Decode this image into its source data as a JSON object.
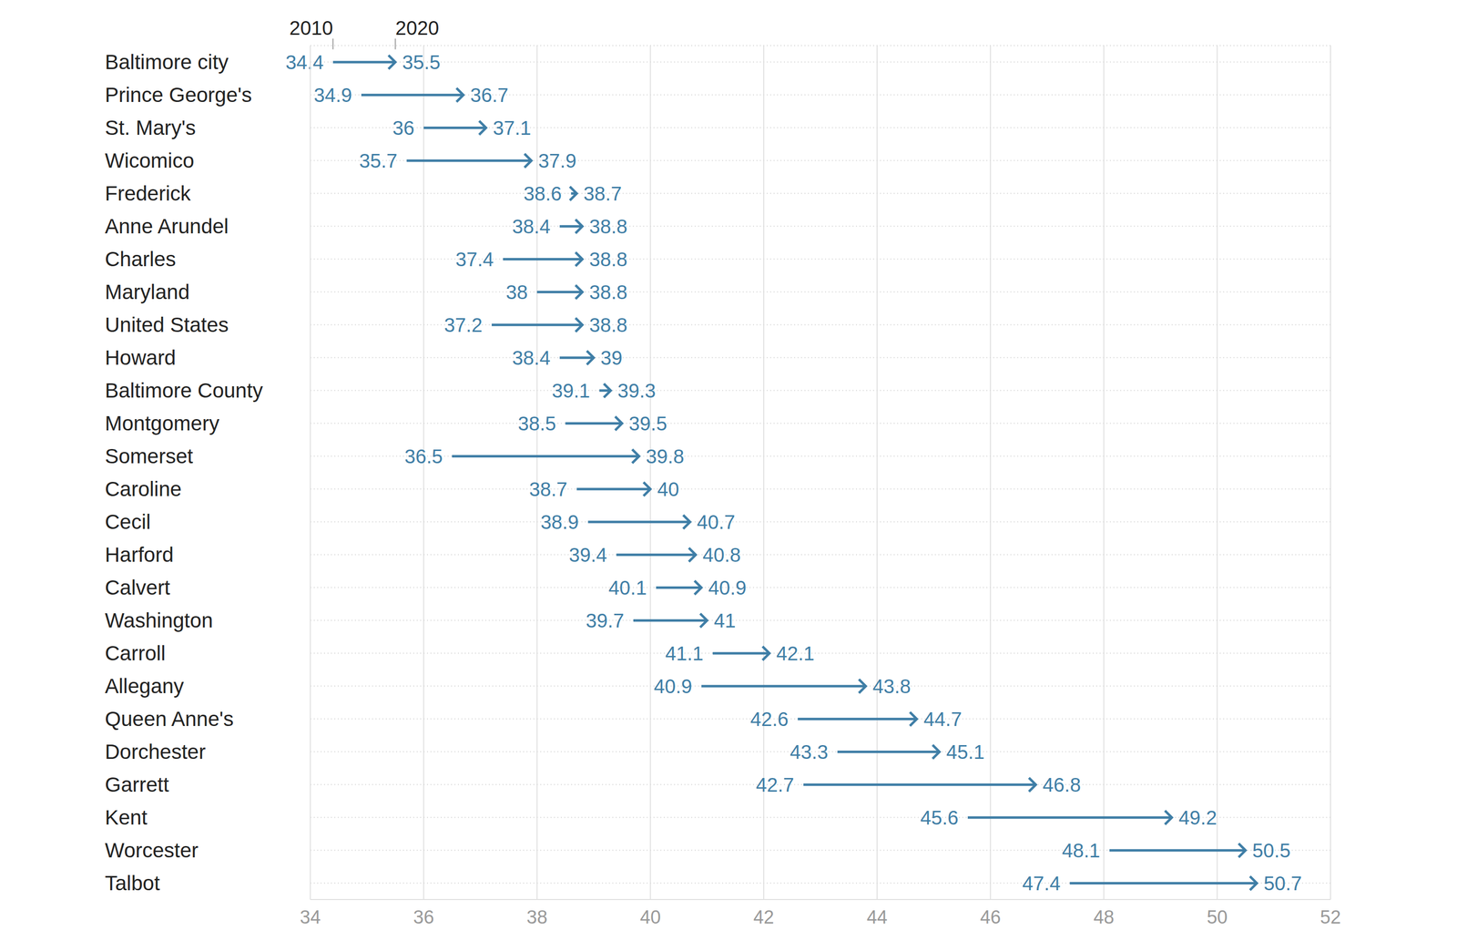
{
  "chart_data": {
    "type": "arrow",
    "orientation": "horizontal",
    "categories": [
      "Baltimore city",
      "Prince George's",
      "St. Mary's",
      "Wicomico",
      "Frederick",
      "Anne Arundel",
      "Charles",
      "Maryland",
      "United States",
      "Howard",
      "Baltimore County",
      "Montgomery",
      "Somerset",
      "Caroline",
      "Cecil",
      "Harford",
      "Calvert",
      "Washington",
      "Carroll",
      "Allegany",
      "Queen Anne's",
      "Dorchester",
      "Garrett",
      "Kent",
      "Worcester",
      "Talbot"
    ],
    "series": [
      {
        "name": "2010",
        "values": [
          34.4,
          34.9,
          36,
          35.7,
          38.6,
          38.4,
          37.4,
          38,
          37.2,
          38.4,
          39.1,
          38.5,
          36.5,
          38.7,
          38.9,
          39.4,
          40.1,
          39.7,
          41.1,
          40.9,
          42.6,
          43.3,
          42.7,
          45.6,
          48.1,
          47.4
        ]
      },
      {
        "name": "2020",
        "values": [
          35.5,
          36.7,
          37.1,
          37.9,
          38.7,
          38.8,
          38.8,
          38.8,
          38.8,
          39,
          39.3,
          39.5,
          39.8,
          40,
          40.7,
          40.8,
          40.9,
          41,
          42.1,
          43.8,
          44.7,
          45.1,
          46.8,
          49.2,
          50.5,
          50.7
        ]
      }
    ],
    "color": "#3f7ea6",
    "xlim": [
      34,
      52
    ],
    "xticks": [
      34,
      36,
      38,
      40,
      42,
      44,
      46,
      48,
      50,
      52
    ],
    "grid": true,
    "data_labels": true,
    "marker": "arrow"
  }
}
